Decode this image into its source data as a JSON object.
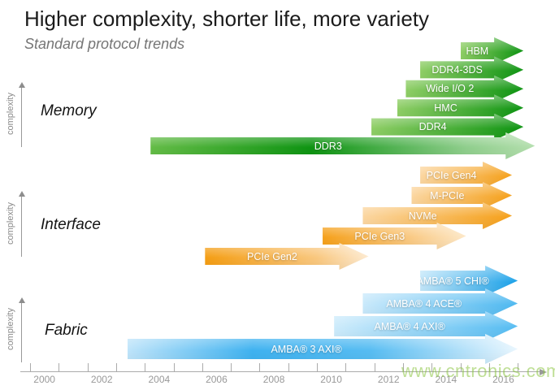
{
  "header": {
    "title": "Higher complexity, shorter life, more variety",
    "subtitle": "Standard protocol trends"
  },
  "watermark": {
    "text": "www.cntronics.com",
    "color": "#8CC63F"
  },
  "axis": {
    "complexity_label": "complexity",
    "year_labels": [
      "2000",
      "2002",
      "2004",
      "2006",
      "2008",
      "2010",
      "2012",
      "2014",
      "2016"
    ]
  },
  "chart_data": {
    "type": "timeline-arrows",
    "title": "Standard protocol trends",
    "x_axis": {
      "start_year": 2000,
      "end_year": 2017,
      "tick_interval_years": 1,
      "label_interval_years": 2
    },
    "y_axis_label_per_group": "complexity",
    "groups": [
      {
        "name": "Memory",
        "base_color": "#149B14",
        "arrows": [
          {
            "label": "HBM",
            "start": 2015.0,
            "end": 2017.2,
            "stops": [
              [
                "#8FCE66",
                "0%"
              ],
              [
                "#0E9412",
                "100%"
              ]
            ]
          },
          {
            "label": "DDR4-3DS",
            "start": 2013.6,
            "end": 2017.2,
            "stops": [
              [
                "#8FCE66",
                "0%"
              ],
              [
                "#0E9412",
                "100%"
              ]
            ]
          },
          {
            "label": "Wide I/O 2",
            "start": 2013.1,
            "end": 2017.2,
            "stops": [
              [
                "#8FCE66",
                "0%"
              ],
              [
                "#0E9412",
                "100%"
              ]
            ]
          },
          {
            "label": "HMC",
            "start": 2012.8,
            "end": 2017.2,
            "stops": [
              [
                "#8FCE66",
                "0%"
              ],
              [
                "#0E9412",
                "100%"
              ]
            ]
          },
          {
            "label": "DDR4",
            "start": 2011.9,
            "end": 2017.2,
            "stops": [
              [
                "#8FCE66",
                "0%"
              ],
              [
                "#0E9412",
                "100%"
              ]
            ]
          },
          {
            "label": "DDR3",
            "start": 2004.2,
            "end": 2017.6,
            "stops": [
              [
                "#64BC47",
                "0%"
              ],
              [
                "#0E9412",
                "42%"
              ],
              [
                "#8FCE8C",
                "82%"
              ],
              [
                "#B4DFAE",
                "100%"
              ]
            ]
          }
        ]
      },
      {
        "name": "Interface",
        "base_color": "#F6A11C",
        "arrows": [
          {
            "label": "PCIe Gen4",
            "start": 2013.6,
            "end": 2016.8,
            "stops": [
              [
                "#FBD6A0",
                "0%"
              ],
              [
                "#F5A01A",
                "100%"
              ]
            ]
          },
          {
            "label": "M-PCIe",
            "start": 2013.3,
            "end": 2016.8,
            "stops": [
              [
                "#FBD6A0",
                "0%"
              ],
              [
                "#F5A01A",
                "100%"
              ]
            ]
          },
          {
            "label": "NVMe",
            "start": 2011.6,
            "end": 2016.8,
            "stops": [
              [
                "#FBD6A0",
                "0%"
              ],
              [
                "#F5A01A",
                "100%"
              ]
            ]
          },
          {
            "label": "PCIe Gen3",
            "start": 2010.2,
            "end": 2015.2,
            "stops": [
              [
                "#F5A01A",
                "0%"
              ],
              [
                "#F9C77E",
                "58%"
              ],
              [
                "#FDE8C8",
                "100%"
              ]
            ]
          },
          {
            "label": "PCIe Gen2",
            "start": 2006.1,
            "end": 2011.8,
            "stops": [
              [
                "#F49D13",
                "0%"
              ],
              [
                "#F9C77E",
                "68%"
              ],
              [
                "#FDEAD0",
                "100%"
              ]
            ]
          }
        ]
      },
      {
        "name": "Fabric",
        "base_color": "#29A9E8",
        "arrows": [
          {
            "label": "AMBA® 5 CHI®",
            "start": 2013.6,
            "end": 2017.0,
            "stops": [
              [
                "#C3E7FA",
                "0%"
              ],
              [
                "#18A0E8",
                "100%"
              ]
            ]
          },
          {
            "label": "AMBA® 4 ACE®",
            "start": 2011.6,
            "end": 2017.0,
            "stops": [
              [
                "#C9E9FB",
                "0%"
              ],
              [
                "#4DB8F0",
                "100%"
              ]
            ]
          },
          {
            "label": "AMBA® 4 AXI®",
            "start": 2010.6,
            "end": 2017.0,
            "stops": [
              [
                "#CDEBFB",
                "0%"
              ],
              [
                "#55BCF2",
                "100%"
              ]
            ]
          },
          {
            "label": "AMBA® 3 AXI®",
            "start": 2003.4,
            "end": 2017.0,
            "stops": [
              [
                "#BEE4FA",
                "0%"
              ],
              [
                "#3FB2F0",
                "32%"
              ],
              [
                "#56BCF2",
                "62%"
              ],
              [
                "#E9F6FE",
                "100%"
              ]
            ]
          }
        ]
      }
    ]
  }
}
